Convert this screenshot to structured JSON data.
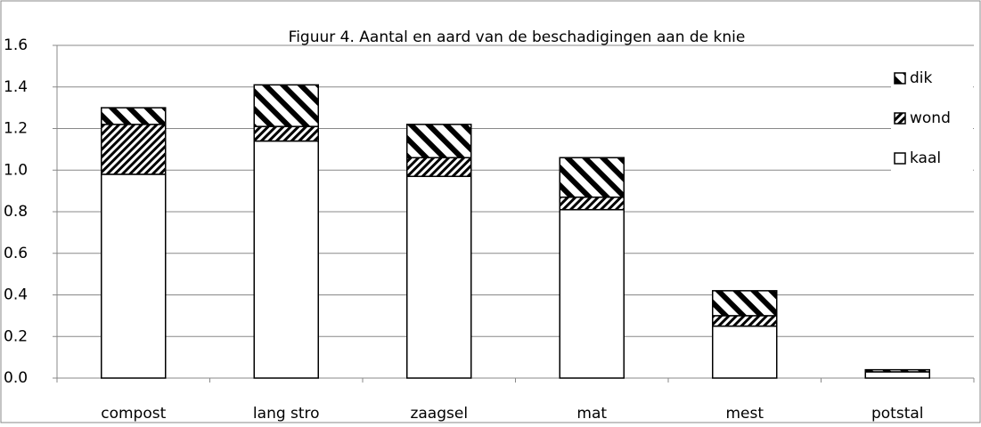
{
  "chart_data": {
    "type": "stacked_bar",
    "title": "Figuur 4. Aantal en aard van de beschadigingen aan de knie",
    "categories": [
      "compost",
      "lang stro",
      "zaagsel",
      "mat",
      "mest",
      "potstal"
    ],
    "series": [
      {
        "name": "kaal",
        "color": "#000000",
        "pattern": "none",
        "values": [
          0.98,
          1.14,
          0.97,
          0.81,
          0.25,
          0.03
        ]
      },
      {
        "name": "wond",
        "color": "#000000",
        "pattern": "dense-diagonal",
        "values": [
          0.24,
          0.07,
          0.09,
          0.06,
          0.05,
          0
        ]
      },
      {
        "name": "dik",
        "color": "#000000",
        "pattern": "wide-diagonal",
        "values": [
          0.08,
          0.2,
          0.16,
          0.19,
          0.12,
          0.01
        ]
      }
    ],
    "ylim": [
      0,
      1.6
    ],
    "yticks": [
      {
        "value": 0,
        "label": "0.0"
      },
      0.2,
      0.4,
      0.6,
      0.8,
      {
        "value": 1,
        "label": "1.0"
      },
      1.2,
      1.4,
      1.6
    ],
    "grid": true,
    "legend": "right"
  }
}
